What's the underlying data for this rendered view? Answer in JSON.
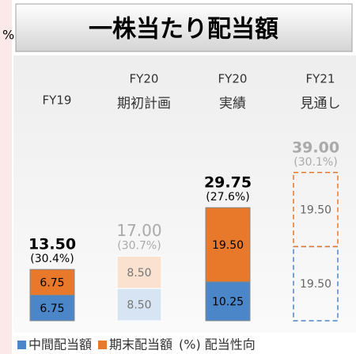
{
  "left_fragment": "%",
  "chart_data": {
    "type": "stacked_bar",
    "title": "一株当たり配当額",
    "categories": [
      "FY19",
      "FY20",
      "FY20",
      "FY21"
    ],
    "subcategories": [
      null,
      "期初計画",
      "実績",
      "見通し"
    ],
    "styles": [
      "solid",
      "faded",
      "solid",
      "dashed"
    ],
    "series": [
      {
        "name": "中間配当額",
        "color": "#4a86c8",
        "values": [
          6.75,
          8.5,
          10.25,
          19.5
        ],
        "value_labels": [
          "6.75",
          "8.50",
          "10.25",
          "19.50"
        ]
      },
      {
        "name": "期末配当額",
        "color": "#e8782a",
        "values": [
          6.75,
          8.5,
          19.5,
          19.5
        ],
        "value_labels": [
          "6.75",
          "8.50",
          "19.50",
          "19.50"
        ]
      }
    ],
    "totals": [
      13.5,
      17,
      29.75,
      39
    ],
    "total_labels": [
      "13.50",
      "17.00",
      "29.75",
      "39.00"
    ],
    "payout_ratios": [
      30.4,
      30.7,
      27.6,
      30.1
    ],
    "payout_ratio_labels": [
      "(30.4%)",
      "(30.7%)",
      "(27.6%)",
      "(30.1%)"
    ],
    "legend_extra": "(%) 配当性向"
  }
}
